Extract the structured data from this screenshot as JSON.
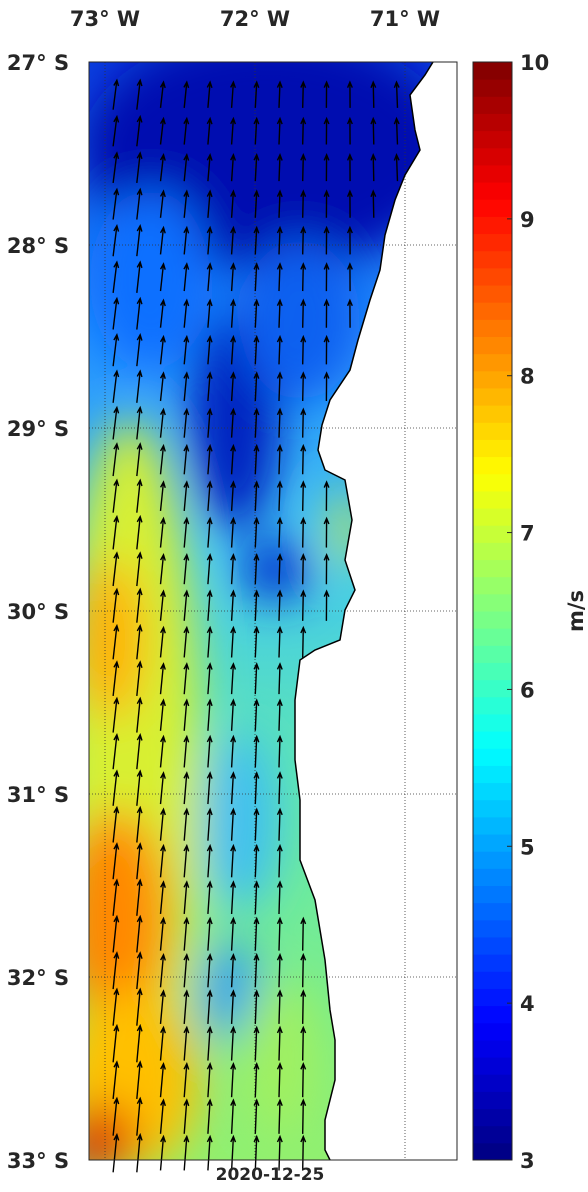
{
  "map": {
    "lon_labels": [
      {
        "value": 73,
        "label": "73° W"
      },
      {
        "value": 72,
        "label": "72° W"
      },
      {
        "value": 71,
        "label": "71° W"
      }
    ],
    "lat_labels": [
      {
        "value": 27,
        "label": "27° S"
      },
      {
        "value": 28,
        "label": "28° S"
      },
      {
        "value": 29,
        "label": "29° S"
      },
      {
        "value": 30,
        "label": "30° S"
      },
      {
        "value": 31,
        "label": "31° S"
      },
      {
        "value": 32,
        "label": "32° S"
      },
      {
        "value": 33,
        "label": "33° S"
      }
    ],
    "date": "2020-12-25",
    "colorbar": {
      "label": "m/s",
      "range": [
        3,
        10
      ],
      "ticks": [
        3,
        4,
        5,
        6,
        7,
        8,
        9,
        10
      ]
    }
  }
}
